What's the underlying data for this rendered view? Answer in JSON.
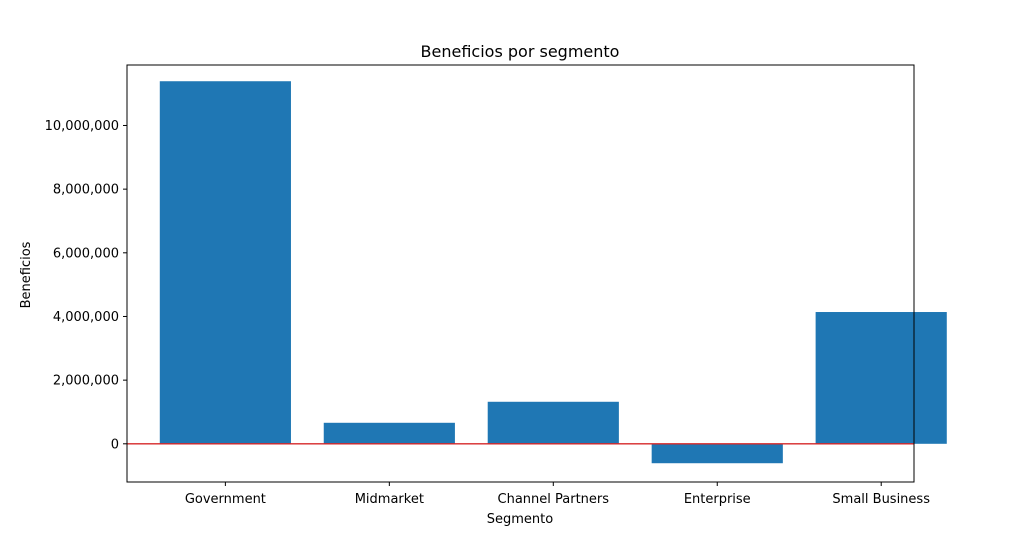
{
  "chart_data": {
    "type": "bar",
    "title": "Beneficios por segmento",
    "xlabel": "Segmento",
    "ylabel": "Beneficios",
    "categories": [
      "Government",
      "Midmarket",
      "Channel Partners",
      "Enterprise",
      "Small Business"
    ],
    "values": [
      11390000,
      660000,
      1320000,
      -610000,
      4140000
    ],
    "ylim": [
      -1200000,
      11900000
    ],
    "yticks": [
      0,
      2000000,
      4000000,
      6000000,
      8000000,
      10000000
    ],
    "ytick_labels": [
      "0",
      "2,000,000",
      "4,000,000",
      "6,000,000",
      "8,000,000",
      "10,000,000"
    ],
    "grid": false,
    "reference_line": 0,
    "colors": {
      "bar": "#1f77b4",
      "reference_line": "#d62728",
      "axes": "#000000"
    }
  }
}
